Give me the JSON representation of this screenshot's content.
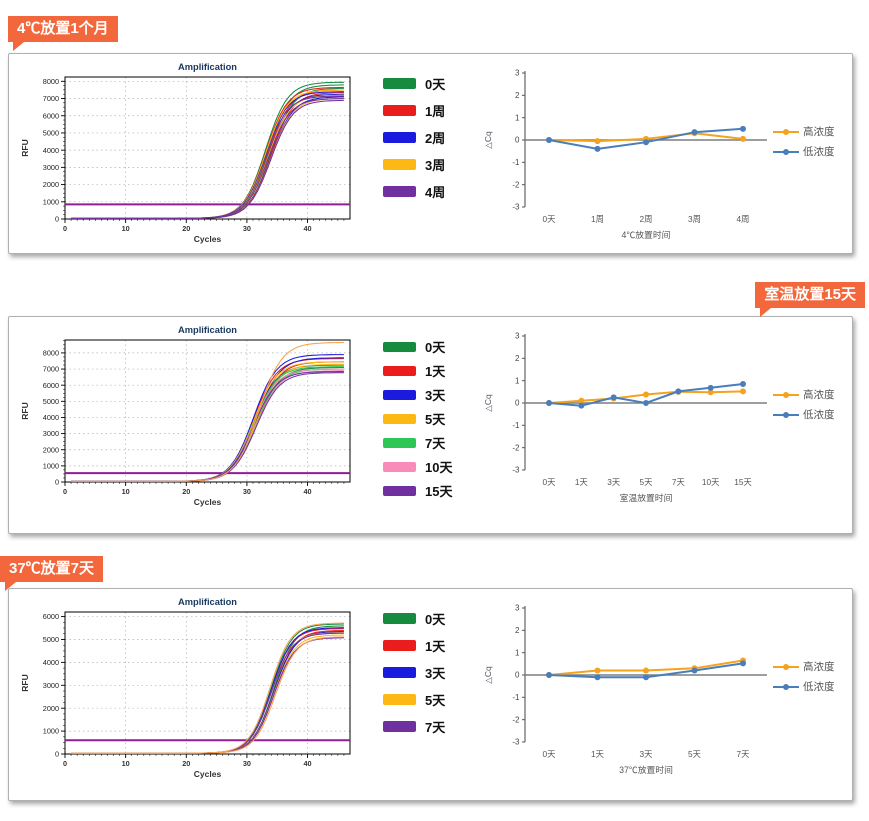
{
  "sections": [
    {
      "banner_label": "4℃放置1个月"
    },
    {
      "banner_label": "室温放置15天"
    },
    {
      "banner_label": "37℃放置7天"
    }
  ],
  "styles": {
    "banner_color": "#f2683c",
    "high_conc_color": "#f5a21d",
    "low_conc_color": "#4a7ebb",
    "threshold_color": "#8e1d96"
  },
  "chart_data": [
    {
      "id": "amp1",
      "type": "line",
      "variant": "amplification",
      "title": "Amplification",
      "xlabel": "Cycles",
      "ylabel": "RFU",
      "xlim": [
        0,
        47
      ],
      "ylim": [
        0,
        8250
      ],
      "xticks": [
        0,
        10,
        20,
        30,
        40
      ],
      "yticks": [
        0,
        1000,
        2000,
        3000,
        4000,
        5000,
        6000,
        7000,
        8000
      ],
      "threshold": 850,
      "threshold_color": "#8e1d96",
      "sigmoid_midpoint": 33.5,
      "sigmoid_k": 0.55,
      "series": [
        {
          "name": "0天",
          "color": "#168a3e",
          "plateaus": [
            7950,
            7800,
            7600
          ]
        },
        {
          "name": "1周",
          "color": "#ea1c1c",
          "plateaus": [
            7650,
            7500,
            7350
          ]
        },
        {
          "name": "2周",
          "color": "#1b1bdf",
          "plateaus": [
            7400,
            7250,
            7100
          ]
        },
        {
          "name": "3周",
          "color": "#fdb913",
          "plateaus": [
            7500,
            7200,
            7000
          ]
        },
        {
          "name": "4周",
          "color": "#7030a0",
          "plateaus": [
            7150,
            7000,
            6900
          ]
        }
      ]
    },
    {
      "id": "dcq1",
      "type": "line",
      "variant": "delta_cq",
      "categories": [
        "0天",
        "1周",
        "2周",
        "3周",
        "4周"
      ],
      "xlabel": "4℃放置时间",
      "ylabel": "△Cq",
      "ylim": [
        -3,
        3
      ],
      "yticks": [
        3,
        2,
        1,
        0,
        -1,
        -2,
        -3
      ],
      "series": [
        {
          "name": "高浓度",
          "color": "#f5a21d",
          "values": [
            0,
            -0.05,
            0.05,
            0.3,
            0.05
          ]
        },
        {
          "name": "低浓度",
          "color": "#4a7ebb",
          "values": [
            0,
            -0.4,
            -0.1,
            0.35,
            0.5
          ]
        }
      ]
    },
    {
      "id": "amp2",
      "type": "line",
      "variant": "amplification",
      "title": "Amplification",
      "xlabel": "Cycles",
      "ylabel": "RFU",
      "xlim": [
        0,
        47
      ],
      "ylim": [
        0,
        8800
      ],
      "xticks": [
        0,
        10,
        20,
        30,
        40
      ],
      "yticks": [
        0,
        1000,
        2000,
        3000,
        4000,
        5000,
        6000,
        7000,
        8000
      ],
      "threshold": 550,
      "threshold_color": "#8e1d96",
      "sigmoid_midpoint": 31.3,
      "sigmoid_k": 0.52,
      "stray_curves": [
        {
          "color": "#f8a04e",
          "plateau": 8650,
          "midpoint_offset": 0.6
        }
      ],
      "series": [
        {
          "name": "0天",
          "color": "#168a3e",
          "plateaus": [
            7250,
            7100
          ]
        },
        {
          "name": "1天",
          "color": "#ea1c1c",
          "plateaus": [
            7650,
            7450
          ]
        },
        {
          "name": "3天",
          "color": "#1b1bdf",
          "plateaus": [
            7900,
            7700
          ]
        },
        {
          "name": "5天",
          "color": "#fdb913",
          "plateaus": [
            7450,
            7300
          ]
        },
        {
          "name": "7天",
          "color": "#2ec655",
          "plateaus": [
            7150,
            7000
          ]
        },
        {
          "name": "10天",
          "color": "#f98bbb",
          "plateaus": [
            7000,
            6900
          ]
        },
        {
          "name": "15天",
          "color": "#7030a0",
          "plateaus": [
            6850,
            6780
          ]
        }
      ]
    },
    {
      "id": "dcq2",
      "type": "line",
      "variant": "delta_cq",
      "categories": [
        "0天",
        "1天",
        "3天",
        "5天",
        "7天",
        "10天",
        "15天"
      ],
      "xlabel": "室温放置时间",
      "ylabel": "△Cq",
      "ylim": [
        -3,
        3
      ],
      "yticks": [
        3,
        2,
        1,
        0,
        -1,
        -2,
        -3
      ],
      "series": [
        {
          "name": "高浓度",
          "color": "#f5a21d",
          "values": [
            0,
            0.1,
            0.2,
            0.38,
            0.5,
            0.48,
            0.52
          ]
        },
        {
          "name": "低浓度",
          "color": "#4a7ebb",
          "values": [
            0,
            -0.12,
            0.25,
            0,
            0.52,
            0.68,
            0.85
          ]
        }
      ]
    },
    {
      "id": "amp3",
      "type": "line",
      "variant": "amplification",
      "title": "Amplification",
      "xlabel": "Cycles",
      "ylabel": "RFU",
      "xlim": [
        0,
        47
      ],
      "ylim": [
        0,
        6200
      ],
      "xticks": [
        0,
        10,
        20,
        30,
        40
      ],
      "yticks": [
        0,
        1000,
        2000,
        3000,
        4000,
        5000,
        6000
      ],
      "threshold": 600,
      "threshold_color": "#8e1d96",
      "sigmoid_midpoint": 34.2,
      "sigmoid_k": 0.58,
      "stray_curves": [
        {
          "color": "#f8a04e",
          "plateau": 5720,
          "midpoint_offset": -0.4
        },
        {
          "color": "#f8a04e",
          "plateau": 5120,
          "midpoint_offset": 0.5
        }
      ],
      "series": [
        {
          "name": "0天",
          "color": "#168a3e",
          "plateaus": [
            5680,
            5600
          ]
        },
        {
          "name": "1天",
          "color": "#ea1c1c",
          "plateaus": [
            5480,
            5400
          ]
        },
        {
          "name": "3天",
          "color": "#1b1bdf",
          "plateaus": [
            5520,
            5350
          ]
        },
        {
          "name": "5天",
          "color": "#fdb913",
          "plateaus": [
            5300,
            5200
          ]
        },
        {
          "name": "7天",
          "color": "#7030a0",
          "plateaus": [
            5280,
            5080
          ]
        }
      ]
    },
    {
      "id": "dcq3",
      "type": "line",
      "variant": "delta_cq",
      "categories": [
        "0天",
        "1天",
        "3天",
        "5天",
        "7天"
      ],
      "xlabel": "37℃放置时间",
      "ylabel": "△Cq",
      "ylim": [
        -3,
        3
      ],
      "yticks": [
        3,
        2,
        1,
        0,
        -1,
        -2,
        -3
      ],
      "series": [
        {
          "name": "高浓度",
          "color": "#f5a21d",
          "values": [
            0,
            0.2,
            0.2,
            0.3,
            0.65
          ]
        },
        {
          "name": "低浓度",
          "color": "#4a7ebb",
          "values": [
            0,
            -0.1,
            -0.1,
            0.2,
            0.52
          ]
        }
      ]
    }
  ]
}
